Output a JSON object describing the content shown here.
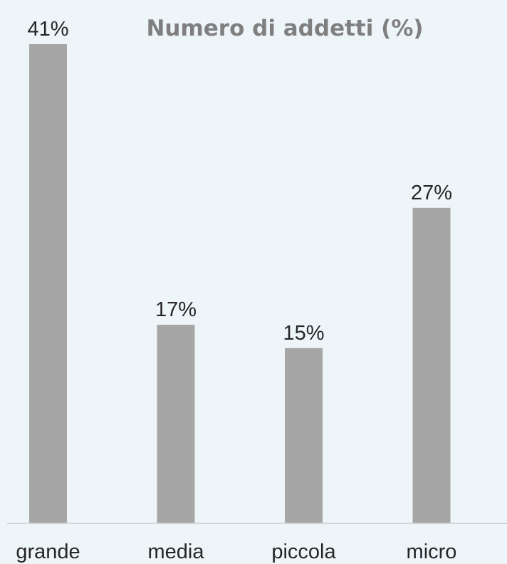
{
  "chart_data": {
    "type": "bar",
    "title": "Numero di addetti (%)",
    "categories": [
      "grande",
      "media",
      "piccola",
      "micro"
    ],
    "values": [
      41,
      17,
      15,
      27
    ],
    "value_labels": [
      "41%",
      "17%",
      "15%",
      "27%"
    ],
    "ylim": [
      0,
      41
    ],
    "grid": false,
    "legend": "none",
    "bar_color": "#a6a6a6",
    "axis_color": "#d0d4d7",
    "background_color": "#eef5f9"
  }
}
